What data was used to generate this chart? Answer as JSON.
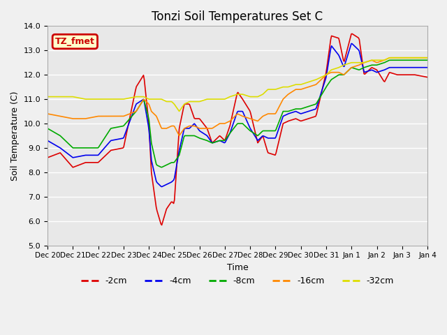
{
  "title": "Tonzi Soil Temperatures Set C",
  "xlabel": "Time",
  "ylabel": "Soil Temperature (C)",
  "ylim": [
    5.0,
    14.0
  ],
  "yticks": [
    5.0,
    6.0,
    7.0,
    8.0,
    9.0,
    10.0,
    11.0,
    12.0,
    13.0,
    14.0
  ],
  "bg_color": "#e8e8e8",
  "label_box_color": "#ffffcc",
  "label_box_edge": "#cc0000",
  "label_text": "TZ_fmet",
  "series_colors": [
    "#dd0000",
    "#0000ee",
    "#00aa00",
    "#ff8800",
    "#dddd00"
  ],
  "series_labels": [
    "-2cm",
    "-4cm",
    "-8cm",
    "-16cm",
    "-32cm"
  ],
  "xtick_labels": [
    "Dec 20",
    "Dec 21",
    "Dec 22",
    "Dec 23",
    "Dec 24",
    "Dec 25",
    "Dec 26",
    "Dec 27",
    "Dec 28",
    "Dec 29",
    "Dec 30",
    "Dec 31",
    "Jan 1",
    "Jan 2",
    "Jan 3",
    "Jan 4"
  ],
  "n_points": 480,
  "days": 15
}
